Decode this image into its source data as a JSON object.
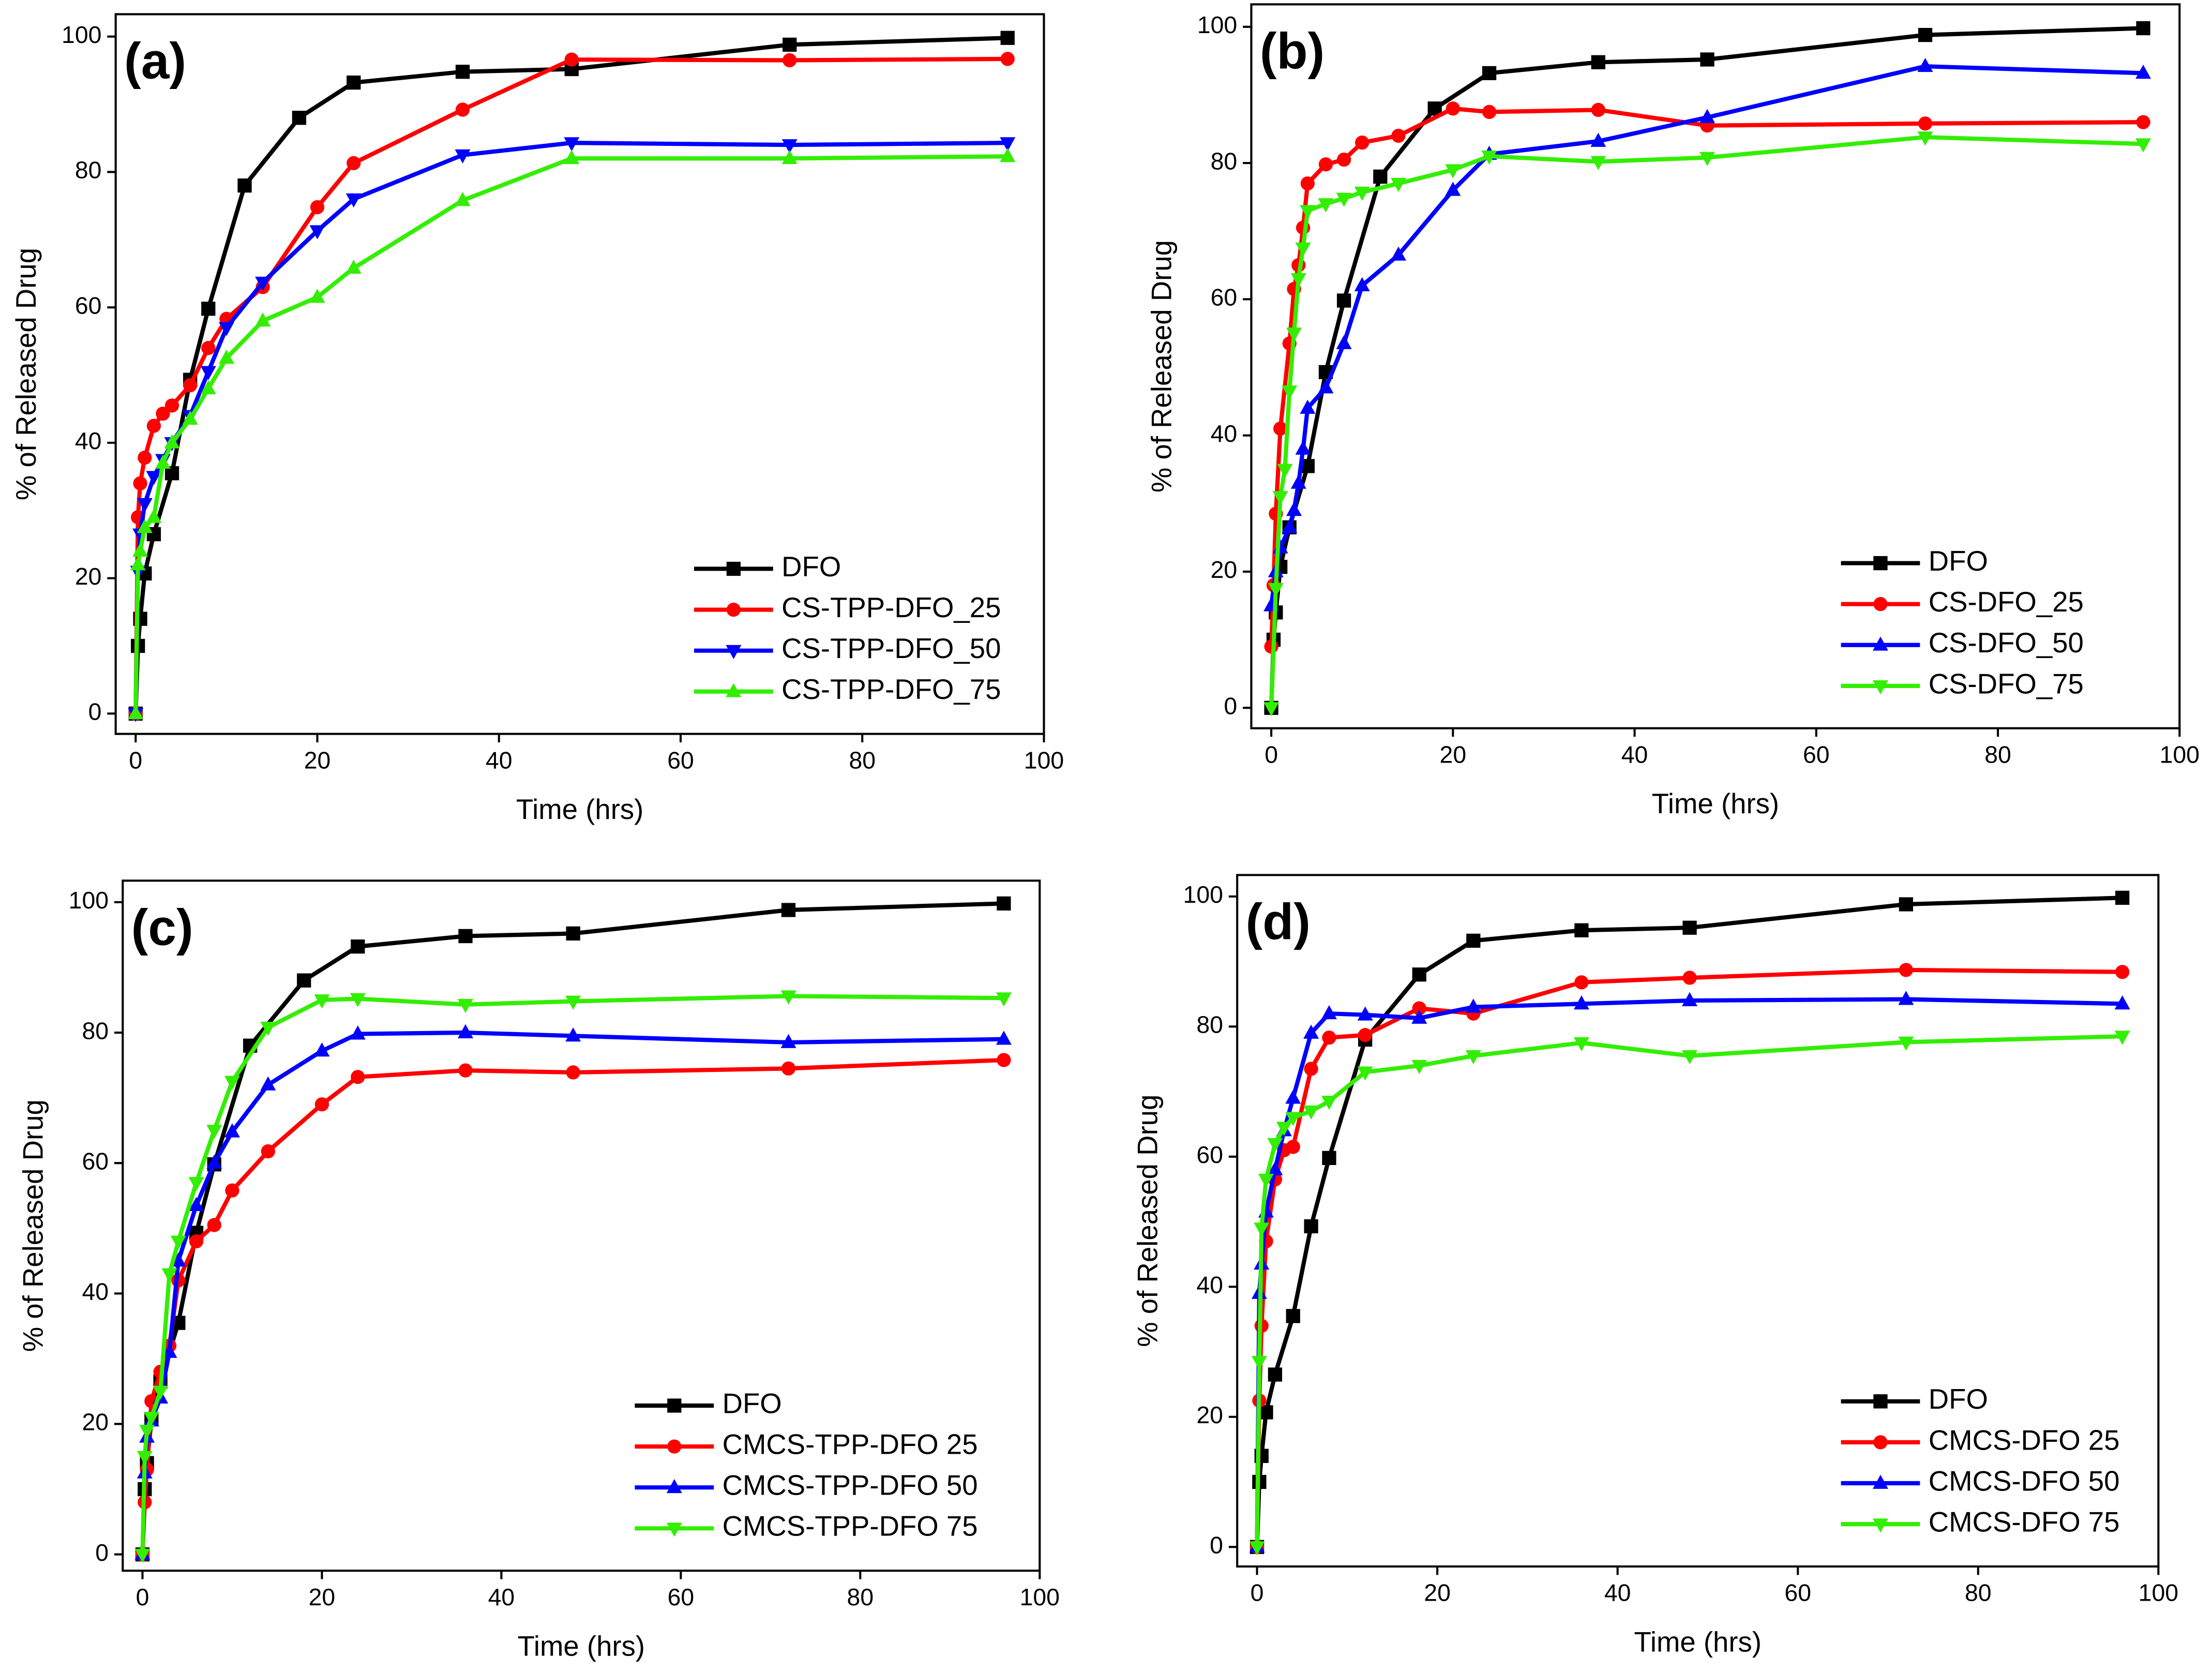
{
  "chart_data": [
    {
      "type": "line",
      "annotation": "(a)",
      "x_label": "Time (hrs)",
      "y_label": "% of Released Drug",
      "xlim": [
        -2.2,
        100
      ],
      "ylim": [
        -3,
        103.3
      ],
      "xticks": [
        0,
        20,
        40,
        60,
        80,
        100
      ],
      "yticks": [
        0,
        20,
        40,
        60,
        80,
        100
      ],
      "legend": "lower right",
      "series": [
        {
          "name": "DFO",
          "color": "#000000",
          "marker": "square",
          "x": [
            0,
            0.25,
            0.5,
            1,
            2,
            4,
            6,
            8,
            12,
            18,
            24,
            36,
            48,
            72,
            96
          ],
          "values": [
            0,
            10,
            14,
            20.7,
            26.5,
            35.5,
            49.3,
            59.8,
            78,
            88,
            93.2,
            94.8,
            95.2,
            98.8,
            99.8
          ]
        },
        {
          "name": "CS-TPP-DFO_25",
          "color": "#ff0000",
          "marker": "circle",
          "x": [
            0,
            0.25,
            0.5,
            1,
            2,
            3,
            4,
            6,
            8,
            10,
            14,
            20,
            24,
            36,
            48,
            72,
            96
          ],
          "values": [
            0,
            29,
            34,
            37.8,
            42.5,
            44.3,
            45.5,
            48.5,
            54,
            58.3,
            63,
            74.8,
            81.3,
            89.2,
            96.6,
            96.5,
            96.7
          ]
        },
        {
          "name": "CS-TPP-DFO_50",
          "color": "#0000ff",
          "marker": "down",
          "x": [
            0,
            0.25,
            0.5,
            1,
            2,
            3,
            4,
            6,
            8,
            10,
            14,
            20,
            24,
            36,
            48,
            72,
            96
          ],
          "values": [
            0,
            21,
            26.5,
            31,
            35,
            37.5,
            40,
            44,
            50.5,
            57,
            63.7,
            71.3,
            76,
            82.5,
            84.3,
            84,
            84.3
          ]
        },
        {
          "name": "CS-TPP-DFO_75",
          "color": "#33ee00",
          "marker": "up",
          "x": [
            0,
            0.25,
            0.5,
            1,
            2,
            3,
            4,
            6,
            8,
            10,
            14,
            20,
            24,
            36,
            48,
            72,
            96
          ],
          "values": [
            0,
            22,
            24,
            27.5,
            29,
            37,
            40,
            43.5,
            48,
            52.5,
            58,
            61.5,
            65.8,
            75.8,
            82,
            82,
            82.3
          ]
        }
      ]
    },
    {
      "type": "line",
      "annotation": "(b)",
      "x_label": "Time (hrs)",
      "y_label": "% of Released Drug",
      "xlim": [
        -2.2,
        100
      ],
      "ylim": [
        -3,
        103.3
      ],
      "xticks": [
        0,
        20,
        40,
        60,
        80,
        100
      ],
      "yticks": [
        0,
        20,
        40,
        60,
        80,
        100
      ],
      "legend": "lower right",
      "series": [
        {
          "name": "DFO",
          "color": "#000000",
          "marker": "square",
          "x": [
            0,
            0.25,
            0.5,
            1,
            2,
            4,
            6,
            8,
            12,
            18,
            24,
            36,
            48,
            72,
            96
          ],
          "values": [
            0,
            10,
            14,
            20.7,
            26.5,
            35.5,
            49.3,
            59.8,
            78,
            88,
            93.2,
            94.8,
            95.2,
            98.8,
            99.8
          ]
        },
        {
          "name": "CS-DFO_25",
          "color": "#ff0000",
          "marker": "circle",
          "x": [
            0,
            0.25,
            0.5,
            1,
            2,
            2.5,
            3,
            3.5,
            4,
            6,
            8,
            10,
            14,
            20,
            24,
            36,
            48,
            72,
            96
          ],
          "values": [
            9,
            18,
            28.5,
            41,
            53.5,
            61.5,
            65,
            70.5,
            77,
            79.8,
            80.5,
            83,
            84,
            88,
            87.5,
            87.8,
            85.5,
            85.8,
            86
          ]
        },
        {
          "name": "CS-DFO_50",
          "color": "#0000ff",
          "marker": "up",
          "x": [
            0,
            0.5,
            1,
            2,
            2.5,
            3,
            3.5,
            4,
            6,
            8,
            10,
            14,
            20,
            24,
            36,
            48,
            72,
            96
          ],
          "values": [
            15,
            20,
            23.5,
            26.5,
            29,
            33,
            38,
            44,
            47,
            53.5,
            62,
            66.5,
            76,
            81.3,
            83.2,
            86.7,
            94.2,
            93.2
          ]
        },
        {
          "name": "CS-DFO_75",
          "color": "#33ee00",
          "marker": "down",
          "x": [
            0,
            0.5,
            1,
            1.5,
            2,
            2.5,
            3,
            3.5,
            4,
            6,
            8,
            10,
            14,
            20,
            24,
            36,
            48,
            72,
            96
          ],
          "values": [
            0,
            17.5,
            31,
            35,
            46.5,
            55,
            63,
            67.5,
            73,
            74,
            74.8,
            75.7,
            77,
            79,
            81,
            80.2,
            80.8,
            83.8,
            82.8
          ]
        }
      ]
    },
    {
      "type": "line",
      "annotation": "(c)",
      "x_label": "Time (hrs)",
      "y_label": "% of Released Drug",
      "xlim": [
        -2.2,
        100
      ],
      "ylim": [
        -2.5,
        103.3
      ],
      "xticks": [
        0,
        20,
        40,
        60,
        80,
        100
      ],
      "yticks": [
        0,
        20,
        40,
        60,
        80,
        100
      ],
      "legend": "lower right",
      "series": [
        {
          "name": "DFO",
          "color": "#000000",
          "marker": "square",
          "x": [
            0,
            0.25,
            0.5,
            1,
            2,
            4,
            6,
            8,
            12,
            18,
            24,
            36,
            48,
            72,
            96
          ],
          "values": [
            0,
            10,
            14,
            20.7,
            26.5,
            35.5,
            49.3,
            59.8,
            78,
            88,
            93.2,
            94.8,
            95.2,
            98.8,
            99.8
          ]
        },
        {
          "name": "CMCS-TPP-DFO 25",
          "color": "#ff0000",
          "marker": "circle",
          "x": [
            0,
            0.25,
            0.5,
            1,
            2,
            3,
            4,
            6,
            8,
            10,
            14,
            20,
            24,
            36,
            48,
            72,
            96
          ],
          "values": [
            0,
            8,
            13,
            23.5,
            28,
            32,
            42,
            48,
            50.5,
            55.8,
            61.8,
            69,
            73.2,
            74.2,
            73.9,
            74.5,
            75.8
          ]
        },
        {
          "name": "CMCS-TPP-DFO 50",
          "color": "#0000ff",
          "marker": "up",
          "x": [
            0,
            0.25,
            0.5,
            1,
            2,
            3,
            4,
            6,
            8,
            10,
            14,
            20,
            24,
            36,
            48,
            72,
            96
          ],
          "values": [
            0,
            12.5,
            18,
            20.5,
            24,
            31,
            45,
            53.5,
            60,
            64.8,
            72,
            77.2,
            79.8,
            80,
            79.5,
            78.5,
            79
          ]
        },
        {
          "name": "CMCS-TPP-DFO 75",
          "color": "#33ee00",
          "marker": "down",
          "x": [
            0,
            0.25,
            0.5,
            1,
            2,
            3,
            4,
            6,
            8,
            10,
            14,
            20,
            24,
            36,
            48,
            72,
            96
          ],
          "values": [
            0,
            15,
            19,
            21,
            25,
            43,
            48,
            57,
            65,
            72.5,
            80.8,
            85,
            85.2,
            84.3,
            84.8,
            85.6,
            85.3
          ]
        }
      ]
    },
    {
      "type": "line",
      "annotation": "(d)",
      "x_label": "Time (hrs)",
      "y_label": "% of Released Drug",
      "xlim": [
        -2.2,
        100
      ],
      "ylim": [
        -3,
        103.3
      ],
      "xticks": [
        0,
        20,
        40,
        60,
        80,
        100
      ],
      "yticks": [
        0,
        20,
        40,
        60,
        80,
        100
      ],
      "legend": "lower right",
      "series": [
        {
          "name": "DFO",
          "color": "#000000",
          "marker": "square",
          "x": [
            0,
            0.25,
            0.5,
            1,
            2,
            4,
            6,
            8,
            12,
            18,
            24,
            36,
            48,
            72,
            96
          ],
          "values": [
            0,
            10,
            14,
            20.7,
            26.5,
            35.5,
            49.3,
            59.8,
            78,
            88,
            93.2,
            94.8,
            95.2,
            98.8,
            99.8
          ]
        },
        {
          "name": "CMCS-DFO 25",
          "color": "#ff0000",
          "marker": "circle",
          "x": [
            0,
            0.25,
            0.5,
            1,
            2,
            3,
            4,
            6,
            8,
            12,
            18,
            24,
            36,
            48,
            72,
            96
          ],
          "values": [
            0,
            22.5,
            34,
            47,
            56.5,
            61,
            61.5,
            73.5,
            78.3,
            78.7,
            82.8,
            82,
            86.8,
            87.5,
            88.7,
            88.4
          ]
        },
        {
          "name": "CMCS-DFO 50",
          "color": "#0000ff",
          "marker": "up",
          "x": [
            0,
            0.25,
            0.5,
            1,
            2,
            3,
            4,
            6,
            8,
            12,
            18,
            24,
            36,
            48,
            72,
            96
          ],
          "values": [
            0,
            39,
            43.5,
            51.5,
            58,
            64,
            69,
            79,
            82,
            81.8,
            81.3,
            83,
            83.5,
            84,
            84.2,
            83.5
          ]
        },
        {
          "name": "CMCS-DFO 75",
          "color": "#33ee00",
          "marker": "down",
          "x": [
            0,
            0.25,
            0.5,
            1,
            2,
            3,
            4,
            6,
            8,
            12,
            18,
            24,
            36,
            48,
            72,
            96
          ],
          "values": [
            0,
            28.5,
            49,
            56.5,
            62,
            64.5,
            66,
            67,
            68.5,
            73,
            74,
            75.5,
            77.5,
            75.5,
            77.6,
            78.5
          ]
        }
      ]
    }
  ]
}
